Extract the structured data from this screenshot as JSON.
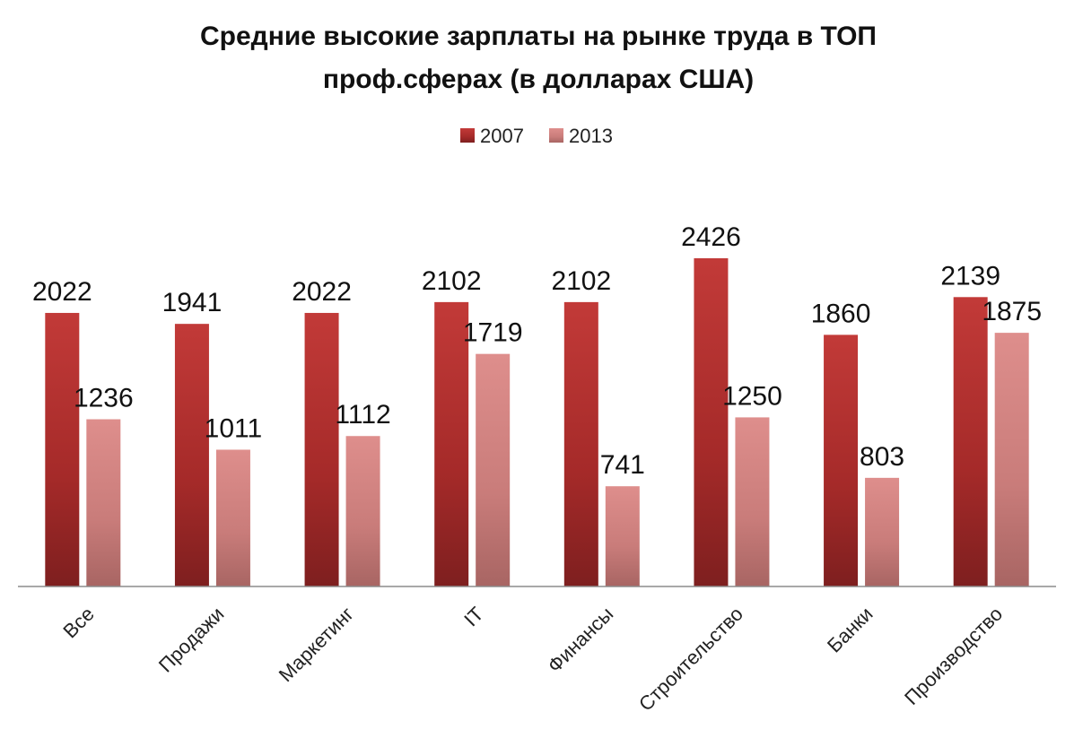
{
  "chart_data": {
    "type": "bar",
    "title_line1": "Средние высокие зарплаты на рынке труда в ТОП",
    "title_line2": "проф.сферах  (в долларах США)",
    "categories": [
      "Все",
      "Продажи",
      "Маркетинг",
      "IT",
      "Финансы",
      "Строительство",
      "Банки",
      "Производство"
    ],
    "series": [
      {
        "name": "2007",
        "values": [
          2022,
          1941,
          2022,
          2102,
          2102,
          2426,
          1860,
          2139
        ],
        "color": "#b0302f"
      },
      {
        "name": "2013",
        "values": [
          1236,
          1011,
          1112,
          1719,
          741,
          1250,
          803,
          1875
        ],
        "color": "#d98583"
      }
    ],
    "ylim": [
      0,
      2426
    ],
    "grid": false,
    "legend_position": "top"
  }
}
